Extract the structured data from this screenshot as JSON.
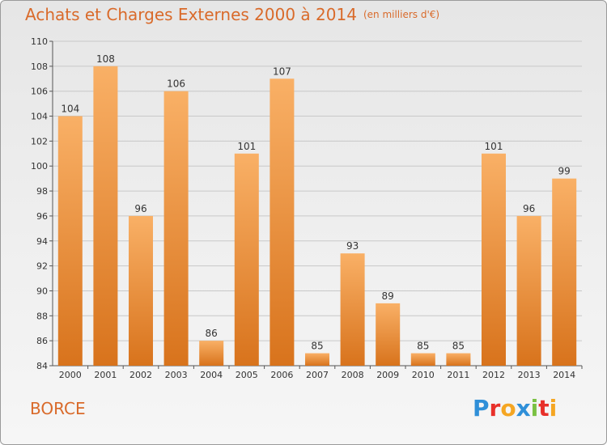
{
  "header": {
    "title": "Achats et Charges Externes 2000 à 2014",
    "subtitle": "(en milliers d'€)"
  },
  "footer": {
    "place": "BORCE",
    "logo_text": "Proxiti",
    "logo_colors": [
      "#2f8fd8",
      "#e8302a",
      "#f5a623",
      "#2f8fd8",
      "#7ac143",
      "#e8302a",
      "#f5a623"
    ]
  },
  "chart_data": {
    "type": "bar",
    "categories": [
      "2000",
      "2001",
      "2002",
      "2003",
      "2004",
      "2005",
      "2006",
      "2007",
      "2008",
      "2009",
      "2010",
      "2011",
      "2012",
      "2013",
      "2014"
    ],
    "values": [
      104,
      108,
      96,
      106,
      86,
      101,
      107,
      85,
      93,
      89,
      85,
      85,
      101,
      96,
      99
    ],
    "data_labels": [
      "104",
      "108",
      "96",
      "106",
      "86",
      "101",
      "107",
      "85",
      "93",
      "89",
      "85",
      "85",
      "101",
      "96",
      "99"
    ],
    "ylim": [
      84,
      110
    ],
    "yticks": [
      84,
      86,
      88,
      90,
      92,
      94,
      96,
      98,
      100,
      102,
      104,
      106,
      108,
      110
    ],
    "grid": true,
    "bar_color": "#f0923a",
    "bar_color_light": "#f9b066",
    "bar_color_dark": "#d8731c"
  }
}
